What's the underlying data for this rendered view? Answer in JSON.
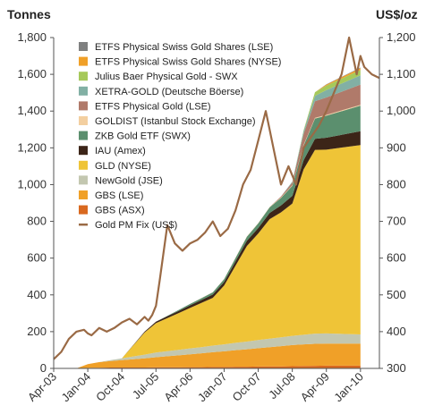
{
  "chart_data": {
    "type": "area",
    "title": "",
    "ylabel_left": "Tonnes",
    "ylabel_right": "US$/oz",
    "ylim_left": [
      0,
      1800
    ],
    "ylim_right": [
      300,
      1200
    ],
    "yticks_left": [
      "0",
      "200",
      "400",
      "600",
      "800",
      "1,000",
      "1,200",
      "1,400",
      "1,600",
      "1,800"
    ],
    "yticks_right": [
      "300",
      "400",
      "500",
      "600",
      "700",
      "800",
      "900",
      "1,000",
      "1,100",
      "1,200"
    ],
    "x_tick_labels": [
      "Apr-03",
      "Jan-04",
      "Oct-04",
      "Jul-05",
      "Apr-06",
      "Jan-07",
      "Oct-07",
      "Jul-08",
      "Apr-09",
      "Jan-10"
    ],
    "x_months": [
      0,
      3,
      6,
      9,
      12,
      15,
      18,
      21,
      24,
      27,
      30,
      33,
      36,
      39,
      42,
      45,
      48,
      51,
      54,
      57,
      60,
      63,
      66,
      69,
      72,
      81
    ],
    "x_tick_months": [
      0,
      9,
      18,
      27,
      36,
      45,
      54,
      63,
      72,
      81
    ],
    "x_max_month": 86,
    "series": [
      {
        "name": "GBS (ASX)",
        "color": "#d9691f",
        "values": [
          0,
          0,
          0,
          3,
          4,
          5,
          5,
          5,
          5,
          6,
          6,
          6,
          7,
          7,
          8,
          8,
          9,
          9,
          10,
          11,
          11,
          12,
          13,
          14,
          15,
          15
        ]
      },
      {
        "name": "GBS (LSE)",
        "color": "#f0a028",
        "values": [
          0,
          0,
          0,
          20,
          30,
          35,
          40,
          45,
          50,
          55,
          60,
          65,
          70,
          75,
          80,
          85,
          90,
          95,
          100,
          105,
          110,
          115,
          118,
          120,
          120,
          120
        ]
      },
      {
        "name": "NewGold (JSE)",
        "color": "#c3c7b0",
        "values": [
          0,
          0,
          0,
          0,
          0,
          5,
          10,
          15,
          20,
          25,
          28,
          30,
          32,
          34,
          36,
          38,
          40,
          42,
          44,
          46,
          48,
          50,
          52,
          55,
          55,
          50
        ]
      },
      {
        "name": "GLD (NYSE)",
        "color": "#efc437",
        "values": [
          0,
          0,
          0,
          0,
          0,
          0,
          0,
          60,
          120,
          160,
          180,
          200,
          220,
          240,
          260,
          320,
          420,
          520,
          580,
          650,
          680,
          720,
          900,
          1000,
          1000,
          1030
        ]
      },
      {
        "name": "IAU (Amex)",
        "color": "#3c2518",
        "values": [
          0,
          0,
          0,
          0,
          0,
          0,
          0,
          2,
          5,
          8,
          10,
          12,
          14,
          16,
          18,
          20,
          24,
          28,
          30,
          34,
          38,
          42,
          50,
          60,
          65,
          75
        ]
      },
      {
        "name": "ZKB Gold ETF (SWX)",
        "color": "#5b8f6e",
        "values": [
          0,
          0,
          0,
          0,
          0,
          0,
          0,
          0,
          0,
          0,
          2,
          5,
          8,
          10,
          12,
          15,
          18,
          22,
          25,
          30,
          40,
          55,
          80,
          110,
          120,
          140
        ]
      },
      {
        "name": "GOLDIST (Istanbul Stock Exchange)",
        "color": "#f3cfa0",
        "values": [
          0,
          0,
          0,
          0,
          0,
          0,
          0,
          0,
          0,
          0,
          0,
          0,
          0,
          1,
          1,
          1,
          2,
          2,
          2,
          2,
          3,
          3,
          3,
          4,
          4,
          4
        ]
      },
      {
        "name": "ETFS Physical Gold (LSE)",
        "color": "#b07a6a",
        "values": [
          0,
          0,
          0,
          0,
          0,
          0,
          0,
          0,
          0,
          0,
          0,
          0,
          0,
          0,
          0,
          0,
          0,
          0,
          0,
          0,
          5,
          15,
          60,
          90,
          95,
          110
        ]
      },
      {
        "name": "XETRA-GOLD (Deutsche Böerse)",
        "color": "#82b0a4",
        "values": [
          0,
          0,
          0,
          0,
          0,
          0,
          0,
          0,
          0,
          0,
          0,
          0,
          0,
          0,
          0,
          0,
          0,
          0,
          0,
          0,
          0,
          5,
          15,
          30,
          40,
          50
        ]
      },
      {
        "name": "Julius Baer Physical Gold - SWX",
        "color": "#a6c95a",
        "values": [
          0,
          0,
          0,
          0,
          0,
          0,
          0,
          0,
          0,
          0,
          0,
          0,
          0,
          0,
          0,
          0,
          0,
          0,
          0,
          0,
          0,
          0,
          5,
          20,
          25,
          30
        ]
      },
      {
        "name": "ETFS Physical Swiss Gold Shares (NYSE)",
        "color": "#f0a028",
        "values": [
          0,
          0,
          0,
          0,
          0,
          0,
          0,
          0,
          0,
          0,
          0,
          0,
          0,
          0,
          0,
          0,
          0,
          0,
          0,
          0,
          0,
          0,
          0,
          0,
          5,
          10
        ]
      },
      {
        "name": "ETFS Physical Swiss Gold Shares (LSE)",
        "color": "#7f8080",
        "values": [
          0,
          0,
          0,
          0,
          0,
          0,
          0,
          0,
          0,
          0,
          0,
          0,
          0,
          0,
          0,
          0,
          0,
          0,
          0,
          0,
          0,
          0,
          0,
          0,
          2,
          3
        ]
      }
    ],
    "line_series": {
      "name": "Gold PM Fix (US$)",
      "color": "#9a6a45",
      "x_months": [
        0,
        2,
        4,
        6,
        8,
        9,
        10,
        12,
        14,
        16,
        18,
        20,
        22,
        24,
        25,
        26,
        27,
        28,
        30,
        32,
        34,
        36,
        38,
        40,
        42,
        44,
        46,
        48,
        50,
        52,
        54,
        56,
        57,
        58,
        60,
        62,
        64,
        66,
        68,
        70,
        72,
        74,
        76,
        78,
        80,
        81,
        82,
        84,
        86
      ],
      "values": [
        325,
        345,
        380,
        400,
        405,
        395,
        390,
        410,
        400,
        410,
        425,
        435,
        420,
        440,
        430,
        445,
        470,
        540,
        690,
        640,
        620,
        640,
        650,
        670,
        700,
        660,
        680,
        730,
        800,
        840,
        920,
        1000,
        950,
        900,
        800,
        850,
        800,
        900,
        930,
        960,
        1000,
        1050,
        1100,
        1200,
        1100,
        1150,
        1120,
        1100,
        1090
      ]
    }
  },
  "legend_labels": [
    "ETFS Physical Swiss Gold Shares (LSE)",
    "ETFS Physical Swiss Gold Shares (NYSE)",
    "Julius Baer Physical Gold - SWX",
    "XETRA-GOLD (Deutsche Böerse)",
    "ETFS Physical Gold (LSE)",
    "GOLDIST (Istanbul Stock Exchange)",
    "ZKB Gold ETF (SWX)",
    "IAU (Amex)",
    "GLD (NYSE)",
    "NewGold (JSE)",
    "GBS (LSE)",
    "GBS (ASX)",
    "Gold PM Fix (US$)"
  ],
  "legend_colors": [
    "#7f8080",
    "#f0a028",
    "#a6c95a",
    "#82b0a4",
    "#b07a6a",
    "#f3cfa0",
    "#5b8f6e",
    "#3c2518",
    "#efc437",
    "#c3c7b0",
    "#f0a028",
    "#d9691f",
    "#9a6a45"
  ]
}
